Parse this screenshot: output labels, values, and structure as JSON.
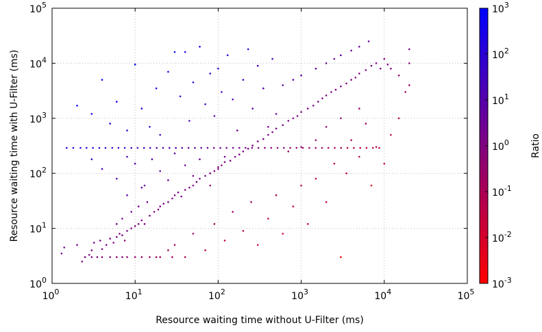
{
  "chart_data": {
    "type": "scatter",
    "xlabel": "Resource waiting time without U-Filter (ms)",
    "ylabel": "Resource waiting time with U-Filter (ms)",
    "colorbar_label": "Ratio",
    "x_scale": "log",
    "y_scale": "log",
    "colorbar_scale": "log",
    "xlim": [
      1,
      100000
    ],
    "ylim": [
      1,
      100000
    ],
    "colorbar_range": [
      0.001,
      1000
    ],
    "x_ticks": [
      {
        "base": "10",
        "exp": "0"
      },
      {
        "base": "10",
        "exp": "1"
      },
      {
        "base": "10",
        "exp": "2"
      },
      {
        "base": "10",
        "exp": "3"
      },
      {
        "base": "10",
        "exp": "4"
      },
      {
        "base": "10",
        "exp": "5"
      }
    ],
    "y_ticks": [
      {
        "base": "10",
        "exp": "0"
      },
      {
        "base": "10",
        "exp": "1"
      },
      {
        "base": "10",
        "exp": "2"
      },
      {
        "base": "10",
        "exp": "3"
      },
      {
        "base": "10",
        "exp": "4"
      },
      {
        "base": "10",
        "exp": "5"
      }
    ],
    "colorbar_ticks": [
      {
        "base": "10",
        "exp": "-3"
      },
      {
        "base": "10",
        "exp": "-2"
      },
      {
        "base": "10",
        "exp": "-1"
      },
      {
        "base": "10",
        "exp": "0"
      },
      {
        "base": "10",
        "exp": "1"
      },
      {
        "base": "10",
        "exp": "2"
      },
      {
        "base": "10",
        "exp": "3"
      }
    ],
    "colormap": {
      "low": "#ff0000",
      "high": "#0000ff"
    },
    "grid": true,
    "points": [
      [
        1.3,
        3.5
      ],
      [
        1.4,
        4.5
      ],
      [
        2.0,
        5.0
      ],
      [
        2.3,
        2.5
      ],
      [
        2.5,
        3.0
      ],
      [
        2.8,
        3.3
      ],
      [
        3.0,
        4.0
      ],
      [
        3.2,
        5.5
      ],
      [
        3.5,
        3.0
      ],
      [
        3.8,
        6.0
      ],
      [
        4.0,
        4.2
      ],
      [
        4.5,
        5.0
      ],
      [
        5.0,
        6.5
      ],
      [
        5.5,
        5.5
      ],
      [
        6.0,
        7.0
      ],
      [
        6.5,
        8.0
      ],
      [
        7.0,
        7.5
      ],
      [
        7.5,
        6.0
      ],
      [
        8.0,
        9.0
      ],
      [
        9.0,
        10.0
      ],
      [
        10,
        11
      ],
      [
        11,
        12
      ],
      [
        12,
        14
      ],
      [
        13,
        12
      ],
      [
        15,
        17
      ],
      [
        17,
        20
      ],
      [
        19,
        22
      ],
      [
        20,
        25
      ],
      [
        22,
        28
      ],
      [
        25,
        30
      ],
      [
        28,
        35
      ],
      [
        30,
        40
      ],
      [
        33,
        45
      ],
      [
        36,
        38
      ],
      [
        40,
        50
      ],
      [
        45,
        55
      ],
      [
        50,
        60
      ],
      [
        55,
        70
      ],
      [
        60,
        80
      ],
      [
        70,
        90
      ],
      [
        80,
        100
      ],
      [
        90,
        110
      ],
      [
        100,
        130
      ],
      [
        110,
        140
      ],
      [
        120,
        160
      ],
      [
        140,
        170
      ],
      [
        160,
        200
      ],
      [
        180,
        220
      ],
      [
        200,
        250
      ],
      [
        230,
        280
      ],
      [
        260,
        320
      ],
      [
        300,
        380
      ],
      [
        350,
        420
      ],
      [
        400,
        500
      ],
      [
        450,
        560
      ],
      [
        500,
        650
      ],
      [
        600,
        750
      ],
      [
        700,
        900
      ],
      [
        800,
        1000
      ],
      [
        900,
        1100
      ],
      [
        1000,
        1300
      ],
      [
        1200,
        1500
      ],
      [
        1400,
        1700
      ],
      [
        1600,
        2000
      ],
      [
        1800,
        2300
      ],
      [
        2000,
        2600
      ],
      [
        2300,
        3000
      ],
      [
        2600,
        3300
      ],
      [
        3000,
        3800
      ],
      [
        3500,
        4300
      ],
      [
        4000,
        5000
      ],
      [
        4500,
        5500
      ],
      [
        5000,
        6500
      ],
      [
        6000,
        7500
      ],
      [
        7000,
        9000
      ],
      [
        8000,
        10000
      ],
      [
        9000,
        8000
      ],
      [
        10000,
        12000
      ],
      [
        11000,
        9500
      ],
      [
        12000,
        8000
      ],
      [
        6500,
        25000
      ],
      [
        5000,
        20000
      ],
      [
        4000,
        17000
      ],
      [
        3000,
        14000
      ],
      [
        2500,
        12000
      ],
      [
        2000,
        10000
      ],
      [
        1500,
        8000
      ],
      [
        1000,
        6000
      ],
      [
        800,
        5000
      ],
      [
        600,
        4000
      ],
      [
        1.5,
        290
      ],
      [
        1.8,
        290
      ],
      [
        2.2,
        290
      ],
      [
        2.6,
        290
      ],
      [
        3.1,
        290
      ],
      [
        3.7,
        290
      ],
      [
        4.4,
        290
      ],
      [
        5.3,
        290
      ],
      [
        6.3,
        290
      ],
      [
        7.5,
        290
      ],
      [
        9.0,
        290
      ],
      [
        10.7,
        290
      ],
      [
        12.8,
        290
      ],
      [
        15.2,
        290
      ],
      [
        18.2,
        290
      ],
      [
        21.7,
        290
      ],
      [
        25.9,
        290
      ],
      [
        30.9,
        290
      ],
      [
        36.8,
        290
      ],
      [
        43.9,
        290
      ],
      [
        52.4,
        290
      ],
      [
        62.5,
        290
      ],
      [
        74.5,
        290
      ],
      [
        88.9,
        290
      ],
      [
        106,
        290
      ],
      [
        126,
        290
      ],
      [
        151,
        290
      ],
      [
        180,
        290
      ],
      [
        214,
        290
      ],
      [
        256,
        290
      ],
      [
        305,
        290
      ],
      [
        364,
        290
      ],
      [
        434,
        290
      ],
      [
        518,
        290
      ],
      [
        618,
        290
      ],
      [
        737,
        290
      ],
      [
        879,
        290
      ],
      [
        1049,
        290
      ],
      [
        1251,
        290
      ],
      [
        1492,
        290
      ],
      [
        1780,
        290
      ],
      [
        2123,
        290
      ],
      [
        2533,
        290
      ],
      [
        3021,
        290
      ],
      [
        3604,
        290
      ],
      [
        4300,
        290
      ],
      [
        5129,
        290
      ],
      [
        6119,
        290
      ],
      [
        7300,
        290
      ],
      [
        8709,
        290
      ],
      [
        2.0,
        1700
      ],
      [
        3.0,
        1200
      ],
      [
        4.0,
        5000
      ],
      [
        5.0,
        800
      ],
      [
        6.0,
        2000
      ],
      [
        8.0,
        600
      ],
      [
        10,
        9500
      ],
      [
        12,
        1500
      ],
      [
        15,
        700
      ],
      [
        18,
        3500
      ],
      [
        20,
        500
      ],
      [
        25,
        7000
      ],
      [
        30,
        16000
      ],
      [
        35,
        2500
      ],
      [
        40,
        16000
      ],
      [
        45,
        900
      ],
      [
        50,
        4500
      ],
      [
        60,
        20000
      ],
      [
        70,
        1800
      ],
      [
        80,
        6500
      ],
      [
        90,
        1100
      ],
      [
        100,
        8000
      ],
      [
        110,
        3000
      ],
      [
        130,
        14000
      ],
      [
        150,
        2200
      ],
      [
        170,
        600
      ],
      [
        200,
        5000
      ],
      [
        230,
        18000
      ],
      [
        260,
        1500
      ],
      [
        300,
        9000
      ],
      [
        350,
        3500
      ],
      [
        400,
        700
      ],
      [
        450,
        12000
      ],
      [
        500,
        1200
      ],
      [
        3,
        180
      ],
      [
        4,
        120
      ],
      [
        6,
        80
      ],
      [
        8,
        200
      ],
      [
        10,
        150
      ],
      [
        13,
        60
      ],
      [
        16,
        180
      ],
      [
        20,
        110
      ],
      [
        25,
        75
      ],
      [
        30,
        230
      ],
      [
        40,
        140
      ],
      [
        50,
        90
      ],
      [
        60,
        180
      ],
      [
        80,
        60
      ],
      [
        100,
        120
      ],
      [
        120,
        200
      ],
      [
        30,
        5
      ],
      [
        40,
        3
      ],
      [
        50,
        8
      ],
      [
        70,
        4
      ],
      [
        90,
        12
      ],
      [
        120,
        6
      ],
      [
        150,
        20
      ],
      [
        200,
        9
      ],
      [
        250,
        30
      ],
      [
        300,
        5
      ],
      [
        400,
        15
      ],
      [
        500,
        40
      ],
      [
        600,
        8
      ],
      [
        800,
        25
      ],
      [
        1000,
        60
      ],
      [
        1200,
        12
      ],
      [
        1500,
        80
      ],
      [
        2000,
        30
      ],
      [
        2500,
        150
      ],
      [
        3000,
        3
      ],
      [
        3500,
        100
      ],
      [
        4000,
        400
      ],
      [
        5000,
        200
      ],
      [
        6000,
        800
      ],
      [
        7000,
        60
      ],
      [
        8000,
        300
      ],
      [
        10000,
        150
      ],
      [
        12000,
        500
      ],
      [
        15000,
        1000
      ],
      [
        20000,
        4000
      ],
      [
        20000,
        18000
      ],
      [
        20000,
        10000
      ],
      [
        15000,
        6000
      ],
      [
        18000,
        3000
      ],
      [
        5000,
        1500
      ],
      [
        3000,
        1000
      ],
      [
        2000,
        700
      ],
      [
        1500,
        400
      ],
      [
        1000,
        300
      ],
      [
        700,
        250
      ],
      [
        3,
        3
      ],
      [
        4,
        3
      ],
      [
        5,
        3
      ],
      [
        6,
        3
      ],
      [
        7,
        3
      ],
      [
        8,
        3
      ],
      [
        10,
        3
      ],
      [
        12,
        3
      ],
      [
        15,
        3
      ],
      [
        18,
        3
      ],
      [
        20,
        3
      ],
      [
        25,
        4
      ],
      [
        28,
        3
      ],
      [
        6,
        12
      ],
      [
        7,
        15
      ],
      [
        9,
        20
      ],
      [
        11,
        25
      ],
      [
        14,
        30
      ],
      [
        8,
        40
      ],
      [
        12,
        55
      ]
    ]
  }
}
